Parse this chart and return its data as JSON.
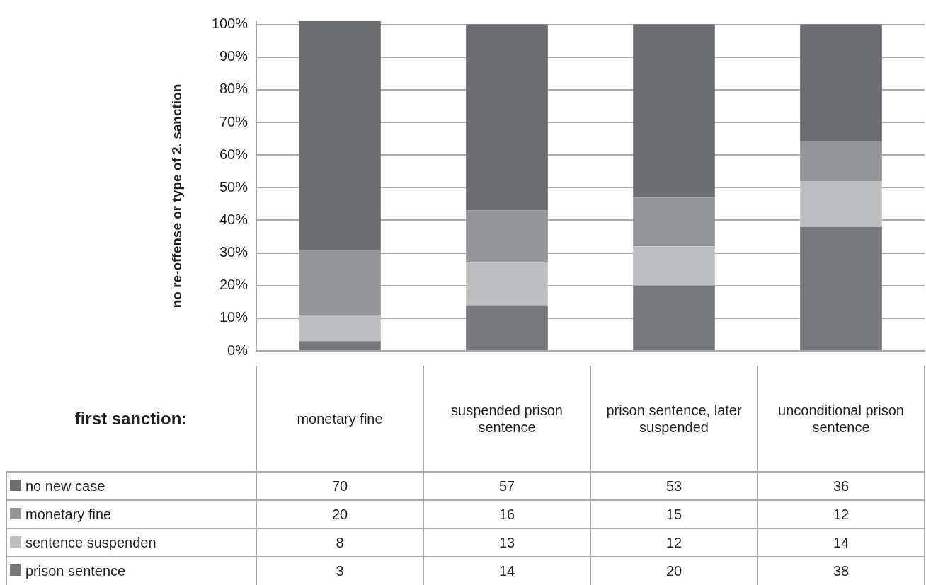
{
  "chart_data": {
    "type": "bar",
    "stacked": true,
    "ylabel": "no re-offense or type of 2. sanction",
    "xlabel": "first sanction:",
    "categories": [
      "monetary fine",
      "suspended prison sentence",
      "prison sentence, later suspended",
      "unconditional prison sentence"
    ],
    "series": [
      {
        "name": "prison sentence",
        "color": "#77787b",
        "values": [
          3,
          14,
          20,
          38
        ]
      },
      {
        "name": "sentence suspenden",
        "color": "#bcbec0",
        "values": [
          8,
          13,
          12,
          14
        ]
      },
      {
        "name": "monetary fine",
        "color": "#939598",
        "values": [
          20,
          16,
          15,
          12
        ]
      },
      {
        "name": "no new case",
        "color": "#6d6e71",
        "values": [
          70,
          57,
          53,
          36
        ]
      }
    ],
    "ylim": [
      0,
      101
    ],
    "yticks": [
      {
        "value": 0,
        "label": "0%"
      },
      {
        "value": 10,
        "label": "10%"
      },
      {
        "value": 20,
        "label": "20%"
      },
      {
        "value": 30,
        "label": "30%"
      },
      {
        "value": 40,
        "label": "40%"
      },
      {
        "value": 50,
        "label": "50%"
      },
      {
        "value": 60,
        "label": "60%"
      },
      {
        "value": 70,
        "label": "70%"
      },
      {
        "value": 80,
        "label": "80%"
      },
      {
        "value": 90,
        "label": "90%"
      },
      {
        "value": 100,
        "label": "100%"
      }
    ],
    "grid": "y",
    "legend": "bottom",
    "data_labels": true
  }
}
